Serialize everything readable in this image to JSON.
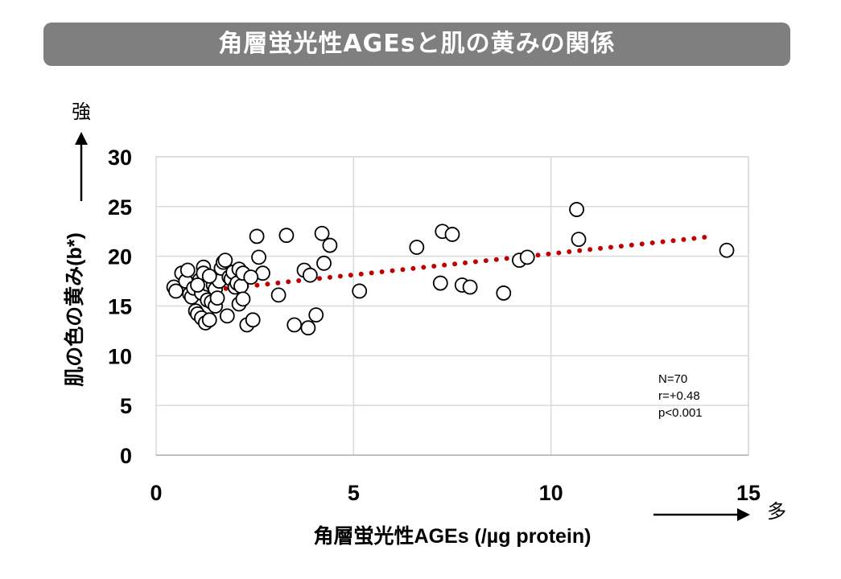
{
  "title": "角層蛍光性AGEsと肌の黄みの関係",
  "y_strength_label": "強",
  "x_quantity_label": "多",
  "stats": {
    "n": "N=70",
    "r": "r=+0.48",
    "p": "p<0.001"
  },
  "colors": {
    "title_bg": "#7f7f7f",
    "trend": "#c00000",
    "grid": "#d9d9d9",
    "marker_stroke": "#000000",
    "marker_fill": "#ffffff"
  },
  "chart_data": {
    "type": "scatter",
    "title": "角層蛍光性AGEsと肌の黄みの関係",
    "xlabel": "角層蛍光性AGEs (/µg protein)",
    "ylabel": "肌の色の黄み(b*)",
    "xlim": [
      0,
      15
    ],
    "ylim": [
      0,
      30
    ],
    "xticks": [
      0,
      5,
      10,
      15
    ],
    "yticks": [
      0,
      5,
      10,
      15,
      20,
      25,
      30
    ],
    "grid": true,
    "points": [
      [
        0.45,
        16.9
      ],
      [
        0.5,
        16.5
      ],
      [
        0.65,
        18.3
      ],
      [
        0.75,
        17.5
      ],
      [
        0.8,
        18.6
      ],
      [
        0.85,
        16.2
      ],
      [
        0.9,
        15.9
      ],
      [
        0.95,
        16.8
      ],
      [
        1.0,
        14.5
      ],
      [
        1.05,
        14.2
      ],
      [
        1.1,
        17.6
      ],
      [
        1.15,
        16.3
      ],
      [
        1.15,
        13.8
      ],
      [
        1.2,
        18.9
      ],
      [
        1.2,
        18.3
      ],
      [
        1.25,
        13.3
      ],
      [
        1.3,
        17.2
      ],
      [
        1.3,
        15.6
      ],
      [
        1.35,
        13.6
      ],
      [
        1.4,
        15.4
      ],
      [
        1.45,
        17.1
      ],
      [
        1.5,
        15.0
      ],
      [
        1.5,
        16.7
      ],
      [
        1.55,
        15.8
      ],
      [
        1.6,
        17.5
      ],
      [
        1.65,
        18.8
      ],
      [
        1.7,
        19.4
      ],
      [
        1.75,
        19.6
      ],
      [
        1.8,
        14.0
      ],
      [
        1.85,
        17.9
      ],
      [
        1.9,
        17.7
      ],
      [
        1.95,
        18.4
      ],
      [
        2.0,
        16.9
      ],
      [
        2.05,
        17.3
      ],
      [
        2.1,
        15.2
      ],
      [
        2.1,
        18.7
      ],
      [
        2.15,
        17.0
      ],
      [
        2.2,
        18.3
      ],
      [
        2.2,
        15.7
      ],
      [
        2.3,
        13.1
      ],
      [
        2.45,
        13.6
      ],
      [
        2.55,
        22.0
      ],
      [
        2.6,
        19.9
      ],
      [
        2.7,
        18.3
      ],
      [
        3.1,
        16.1
      ],
      [
        3.3,
        22.1
      ],
      [
        3.5,
        13.1
      ],
      [
        3.75,
        18.6
      ],
      [
        3.85,
        12.8
      ],
      [
        3.9,
        18.1
      ],
      [
        4.05,
        14.1
      ],
      [
        4.2,
        22.3
      ],
      [
        4.25,
        19.3
      ],
      [
        4.4,
        21.1
      ],
      [
        5.15,
        16.5
      ],
      [
        6.6,
        20.9
      ],
      [
        7.2,
        17.3
      ],
      [
        7.25,
        22.5
      ],
      [
        7.5,
        22.2
      ],
      [
        7.75,
        17.1
      ],
      [
        7.95,
        16.9
      ],
      [
        8.8,
        16.3
      ],
      [
        9.2,
        19.6
      ],
      [
        9.4,
        19.9
      ],
      [
        10.65,
        24.7
      ],
      [
        10.7,
        21.7
      ],
      [
        14.45,
        20.6
      ],
      [
        1.35,
        18.0
      ],
      [
        1.05,
        17.1
      ],
      [
        2.4,
        17.9
      ]
    ],
    "trendline": {
      "x": [
        0.45,
        14.1
      ],
      "y": [
        16.2,
        22.0
      ],
      "style": "dotted"
    }
  }
}
